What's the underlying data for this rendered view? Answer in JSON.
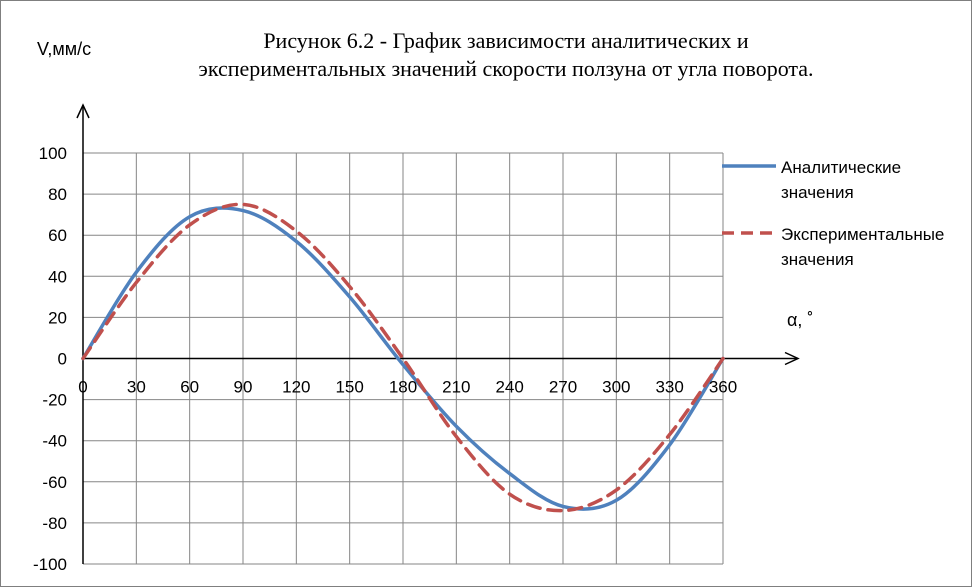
{
  "chart_data": {
    "type": "line",
    "title": [
      "Рисунок 6.2 - График зависимости аналитических и",
      "экспериментальных значений скорости ползуна от угла поворота."
    ],
    "xlabel": "α, ˚",
    "ylabel": "V,мм/с",
    "xlim": [
      0,
      360
    ],
    "ylim": [
      -100,
      100
    ],
    "x_ticks": [
      "0",
      "30",
      "60",
      "90",
      "120",
      "150",
      "180",
      "210",
      "240",
      "270",
      "300",
      "330",
      "360"
    ],
    "y_ticks": [
      "100",
      "80",
      "60",
      "40",
      "20",
      "0",
      "-20",
      "-40",
      "-60",
      "-80",
      "-100"
    ],
    "grid": true,
    "legend_position": "right",
    "x": [
      0,
      30,
      60,
      90,
      120,
      150,
      180,
      210,
      240,
      270,
      300,
      330,
      360
    ],
    "series": [
      {
        "name": "Аналитические значения",
        "color": "#4f81bd",
        "style": "solid",
        "values": [
          0,
          42,
          69,
          72,
          57,
          30,
          -3,
          -33,
          -56,
          -72,
          -69,
          -42,
          0
        ]
      },
      {
        "name": "Экспериментальные значения",
        "color": "#c0504d",
        "style": "dashed",
        "values": [
          0,
          37,
          65,
          75,
          62,
          35,
          0,
          -38,
          -66,
          -74,
          -64,
          -37,
          0
        ]
      }
    ]
  }
}
